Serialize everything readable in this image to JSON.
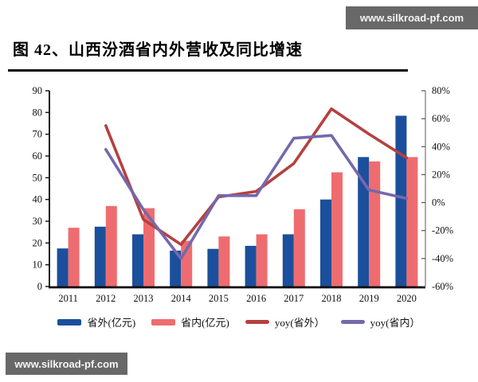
{
  "header": {
    "title": "图 42、山西汾酒省内外营收及同比增速"
  },
  "watermarks": {
    "top": "www.silkroad-pf.com",
    "bottom": "www.silkroad-pf.com"
  },
  "colors": {
    "bar_outside": "#1b4f9c",
    "bar_inside": "#ee6c70",
    "line_yoy_outside": "#b5413f",
    "line_yoy_inside": "#7568ac",
    "watermark_bg": "#686868",
    "axis": "#1a1a1a"
  },
  "chart_data": {
    "type": "bar",
    "subtype": "grouped-bars-with-lines",
    "categories": [
      "2011",
      "2012",
      "2013",
      "2014",
      "2015",
      "2016",
      "2017",
      "2018",
      "2019",
      "2020"
    ],
    "series": [
      {
        "name": "省外(亿元)",
        "kind": "bar",
        "axis": "left",
        "color": "#1b4f9c",
        "values": [
          17.5,
          27.5,
          24,
          16.5,
          17.3,
          18.7,
          24,
          40,
          59.5,
          78.5
        ]
      },
      {
        "name": "省内(亿元)",
        "kind": "bar",
        "axis": "left",
        "color": "#ee6c70",
        "values": [
          27,
          37,
          36,
          21,
          23,
          24,
          35.5,
          52.5,
          57.5,
          59.5
        ]
      },
      {
        "name": "yoy(省外）",
        "kind": "line",
        "axis": "right",
        "color": "#b5413f",
        "values": [
          null,
          55,
          -12,
          -30,
          4,
          8,
          28,
          67,
          49,
          32
        ]
      },
      {
        "name": "yoy(省内）",
        "kind": "line",
        "axis": "right",
        "color": "#7568ac",
        "values": [
          null,
          38,
          -5,
          -40,
          5,
          5,
          46,
          48,
          9,
          3
        ]
      }
    ],
    "left_axis": {
      "min": 0,
      "max": 90,
      "step": 10,
      "tick_labels": [
        "0",
        "10",
        "20",
        "30",
        "40",
        "50",
        "60",
        "70",
        "80",
        "90"
      ]
    },
    "right_axis": {
      "min": -60,
      "max": 80,
      "step": 20,
      "tick_labels": [
        "-60%",
        "-40%",
        "-20%",
        "0%",
        "20%",
        "40%",
        "60%",
        "80%"
      ]
    },
    "grid": false,
    "legend_position": "bottom",
    "title": "图 42、山西汾酒省内外营收及同比增速"
  }
}
